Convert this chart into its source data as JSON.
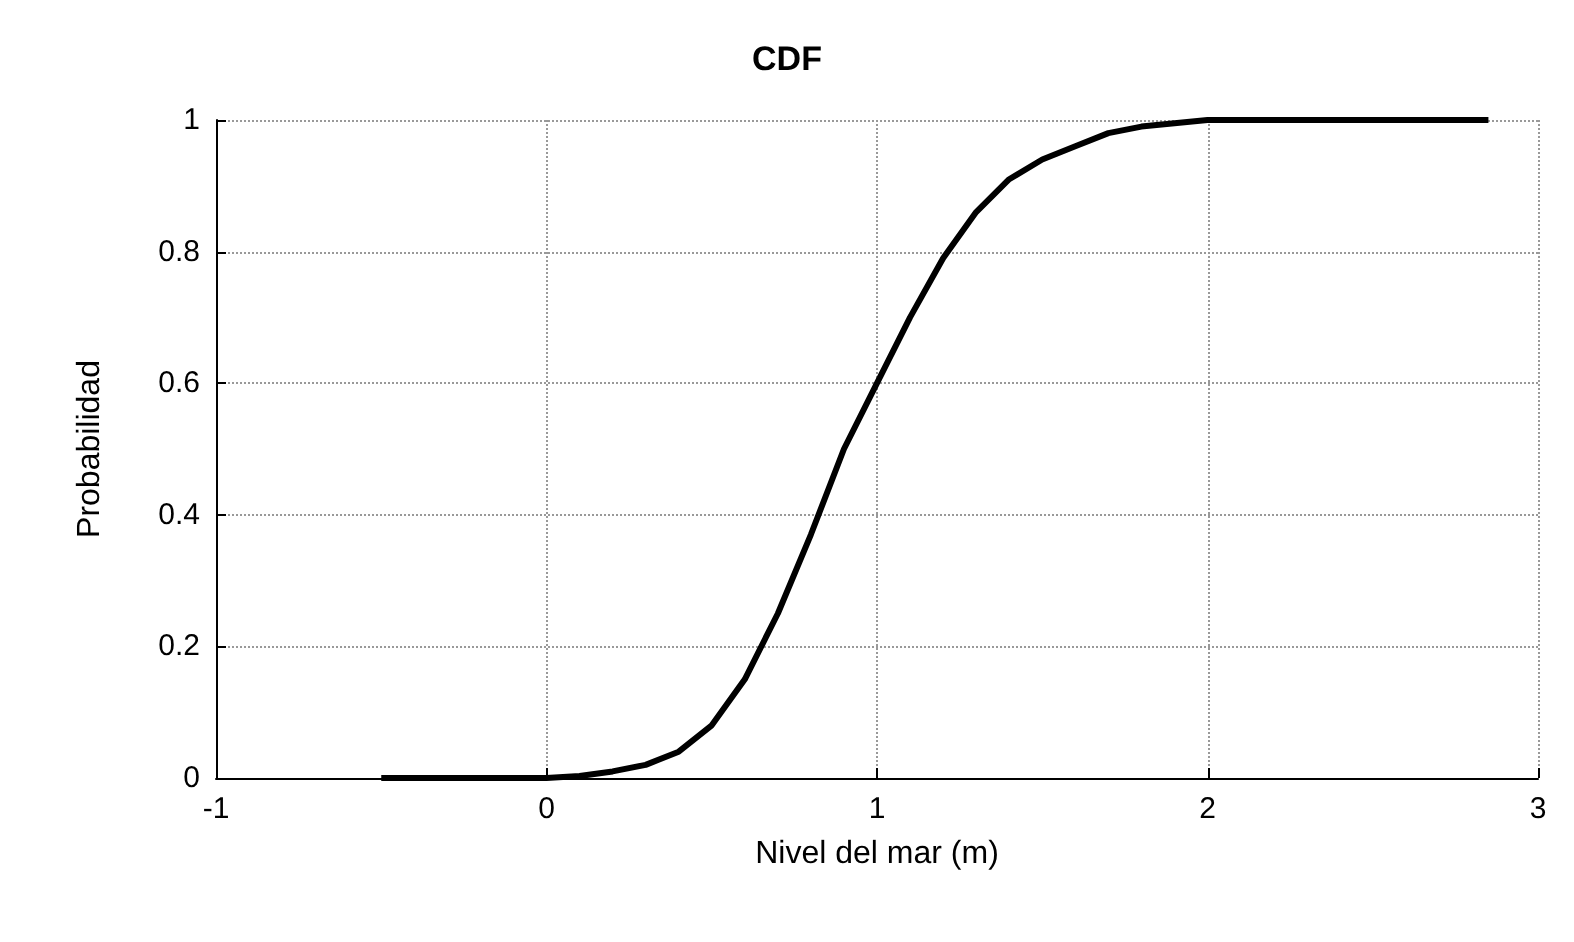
{
  "chart_data": {
    "type": "line",
    "title": "CDF",
    "xlabel": "Nivel del mar (m)",
    "ylabel": "Probabilidad",
    "x": [
      -0.5,
      0,
      0.1,
      0.2,
      0.3,
      0.4,
      0.5,
      0.6,
      0.7,
      0.8,
      0.9,
      1.0,
      1.1,
      1.2,
      1.3,
      1.4,
      1.5,
      1.6,
      1.7,
      1.8,
      1.9,
      2.0,
      2.3,
      2.85
    ],
    "series": [
      {
        "color": "#000000",
        "values": [
          0,
          0,
          0.003,
          0.01,
          0.02,
          0.04,
          0.08,
          0.15,
          0.25,
          0.37,
          0.5,
          0.6,
          0.7,
          0.79,
          0.86,
          0.91,
          0.94,
          0.96,
          0.98,
          0.99,
          0.995,
          1,
          1,
          1
        ]
      }
    ],
    "xlim": [
      -1,
      3
    ],
    "xticks": [
      -1,
      0,
      1,
      2,
      3
    ],
    "ylim": [
      0,
      1
    ],
    "yticks": [
      0,
      0.2,
      0.4,
      0.6,
      0.8,
      1
    ],
    "grid": true,
    "marker": "none",
    "line_style": "solid"
  }
}
